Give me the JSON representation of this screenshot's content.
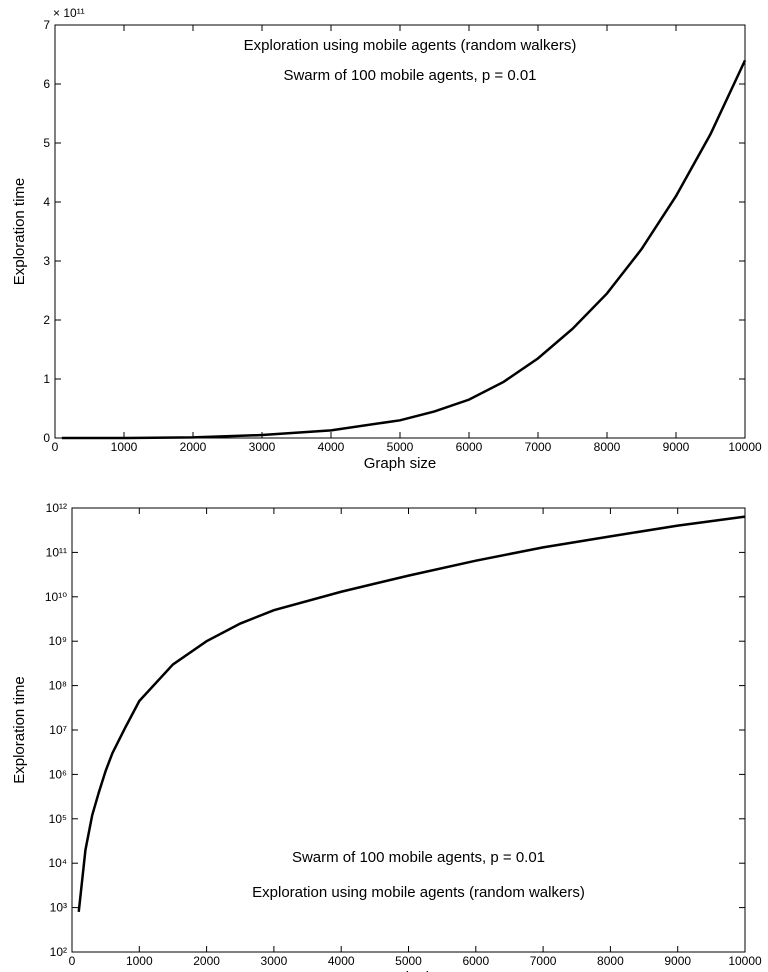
{
  "chart_data": [
    {
      "type": "line",
      "yscale": "linear",
      "color": "#000000",
      "annotations": [
        "Exploration using mobile agents (random walkers)",
        "Swarm of 100 mobile agents, p = 0.01"
      ],
      "x_label": "Graph size",
      "y_label": "Exploration time",
      "y_multiplier": "× 10¹¹",
      "x": [
        100,
        1000,
        2000,
        3000,
        4000,
        5000,
        5500,
        6000,
        6500,
        7000,
        7500,
        8000,
        8500,
        9000,
        9500,
        10000
      ],
      "values": [
        0,
        0.0005,
        0.01,
        0.05,
        0.13,
        0.3,
        0.45,
        0.65,
        0.95,
        1.35,
        1.85,
        2.45,
        3.2,
        4.1,
        5.15,
        6.4
      ],
      "xlim": [
        0,
        10000
      ],
      "xticks": [
        0,
        1000,
        2000,
        3000,
        4000,
        5000,
        6000,
        7000,
        8000,
        9000,
        10000
      ],
      "ylim": [
        0,
        7
      ],
      "yticks": [
        0,
        1,
        2,
        3,
        4,
        5,
        6,
        7
      ]
    },
    {
      "type": "line",
      "yscale": "log",
      "color": "#000000",
      "annotations": [
        "Swarm of 100 mobile agents, p = 0.01",
        "Exploration using mobile agents (random walkers)"
      ],
      "x_label": "Graph size",
      "y_label": "Exploration time",
      "x": [
        100,
        200,
        300,
        400,
        500,
        600,
        800,
        1000,
        1500,
        2000,
        2500,
        3000,
        4000,
        5000,
        6000,
        7000,
        8000,
        9000,
        10000
      ],
      "values": [
        800,
        20000,
        120000,
        400000,
        1200000,
        3000000,
        12000000,
        45000000,
        300000000,
        1000000000,
        2500000000,
        5000000000,
        13000000000,
        30000000000,
        65000000000,
        130000000000,
        230000000000,
        400000000000,
        640000000000
      ],
      "xlim": [
        0,
        10000
      ],
      "xticks": [
        0,
        1000,
        2000,
        3000,
        4000,
        5000,
        6000,
        7000,
        8000,
        9000,
        10000
      ],
      "ylim": [
        100,
        1000000000000
      ],
      "yticks": [
        {
          "value": 100,
          "label": "10²"
        },
        {
          "value": 1000,
          "label": "10³"
        },
        {
          "value": 10000,
          "label": "10⁴"
        },
        {
          "value": 100000,
          "label": "10⁵"
        },
        {
          "value": 1000000,
          "label": "10⁶"
        },
        {
          "value": 10000000,
          "label": "10⁷"
        },
        {
          "value": 100000000,
          "label": "10⁸"
        },
        {
          "value": 1000000000,
          "label": "10⁹"
        },
        {
          "value": 10000000000,
          "label": "10¹⁰"
        },
        {
          "value": 100000000000,
          "label": "10¹¹"
        },
        {
          "value": 1000000000000,
          "label": "10¹²"
        }
      ]
    }
  ]
}
